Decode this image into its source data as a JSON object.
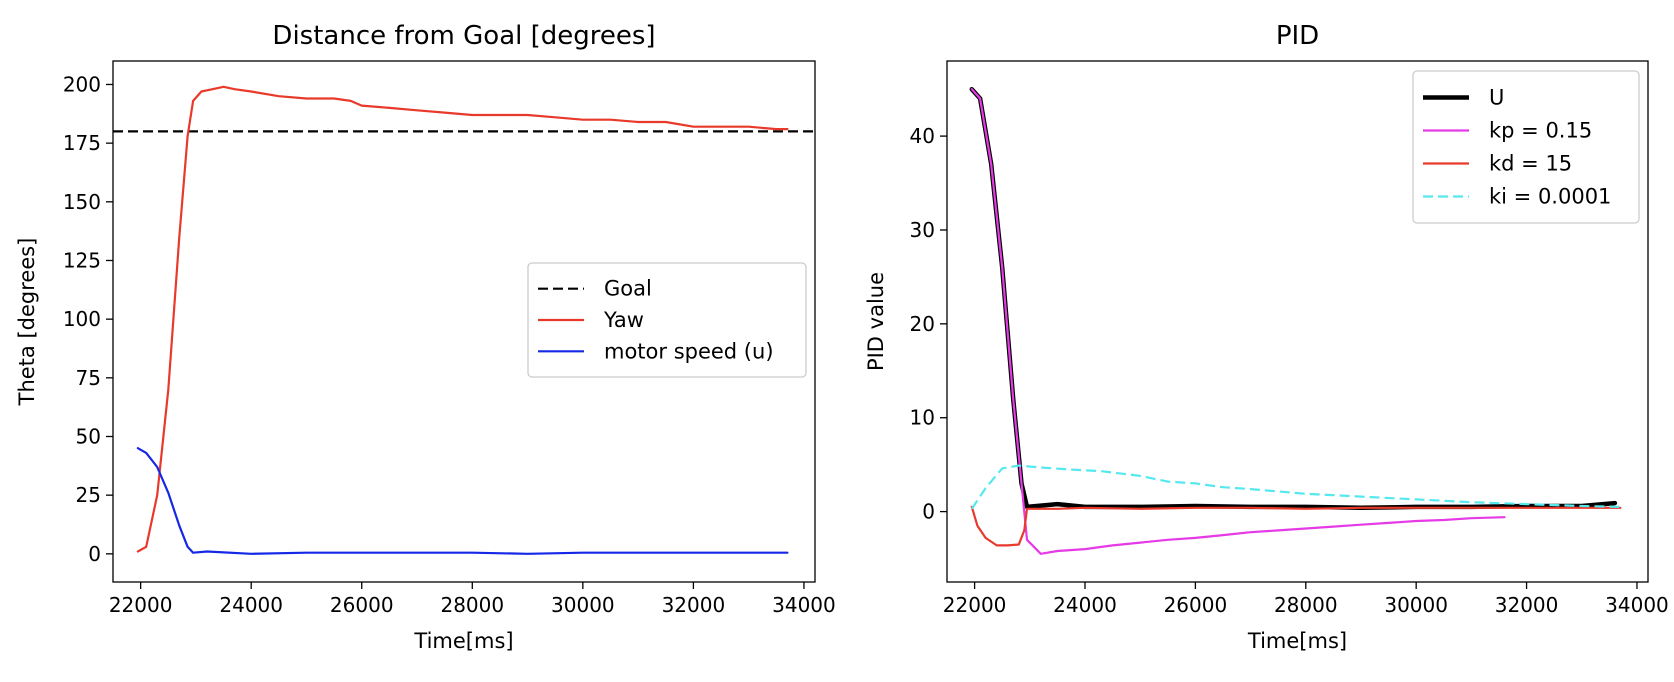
{
  "chart_data": [
    {
      "type": "line",
      "title": "Distance from Goal [degrees]",
      "xlabel": "Time[ms]",
      "ylabel": "Theta [degrees]",
      "xlim": [
        21500,
        34200
      ],
      "ylim": [
        -12,
        210
      ],
      "xticks": [
        22000,
        24000,
        26000,
        28000,
        30000,
        32000,
        34000
      ],
      "yticks": [
        0,
        25,
        50,
        75,
        100,
        125,
        150,
        175,
        200
      ],
      "grid": false,
      "legend_position": "center-right",
      "series": [
        {
          "name": "Goal",
          "color": "#000000",
          "style": "dashed",
          "points": [
            [
              21500,
              180
            ],
            [
              34200,
              180
            ]
          ]
        },
        {
          "name": "Yaw",
          "color": "#e8392b",
          "style": "solid",
          "points": [
            [
              21950,
              1
            ],
            [
              22100,
              3
            ],
            [
              22300,
              25
            ],
            [
              22500,
              70
            ],
            [
              22700,
              135
            ],
            [
              22850,
              178
            ],
            [
              22950,
              193
            ],
            [
              23100,
              197
            ],
            [
              23300,
              198
            ],
            [
              23500,
              199
            ],
            [
              23700,
              198
            ],
            [
              24000,
              197
            ],
            [
              24500,
              195
            ],
            [
              25000,
              194
            ],
            [
              25500,
              194
            ],
            [
              25800,
              193
            ],
            [
              26000,
              191
            ],
            [
              26500,
              190
            ],
            [
              27000,
              189
            ],
            [
              27500,
              188
            ],
            [
              28000,
              187
            ],
            [
              28500,
              187
            ],
            [
              29000,
              187
            ],
            [
              29500,
              186
            ],
            [
              30000,
              185
            ],
            [
              30500,
              185
            ],
            [
              31000,
              184
            ],
            [
              31500,
              184
            ],
            [
              32000,
              182
            ],
            [
              32500,
              182
            ],
            [
              33000,
              182
            ],
            [
              33500,
              181
            ],
            [
              33700,
              181
            ]
          ]
        },
        {
          "name": "motor speed (u)",
          "color": "#1428e6",
          "style": "solid",
          "points": [
            [
              21950,
              45
            ],
            [
              22100,
              43
            ],
            [
              22300,
              37
            ],
            [
              22500,
              26
            ],
            [
              22700,
              12
            ],
            [
              22850,
              3
            ],
            [
              22950,
              0.5
            ],
            [
              23200,
              1
            ],
            [
              24000,
              0
            ],
            [
              25000,
              0.5
            ],
            [
              26000,
              0.5
            ],
            [
              27000,
              0.5
            ],
            [
              28000,
              0.5
            ],
            [
              29000,
              0
            ],
            [
              30000,
              0.5
            ],
            [
              31000,
              0.5
            ],
            [
              32000,
              0.5
            ],
            [
              33000,
              0.5
            ],
            [
              33700,
              0.5
            ]
          ]
        }
      ]
    },
    {
      "type": "line",
      "title": "PID",
      "xlabel": "Time[ms]",
      "ylabel": "PID value",
      "xlim": [
        21500,
        34200
      ],
      "ylim": [
        -7.5,
        48
      ],
      "xticks": [
        22000,
        24000,
        26000,
        28000,
        30000,
        32000,
        34000
      ],
      "yticks": [
        0,
        10,
        20,
        30,
        40
      ],
      "grid": false,
      "legend_position": "top-right",
      "series": [
        {
          "name": "U",
          "color": "#000000",
          "style": "solid-thick",
          "points": [
            [
              21950,
              45
            ],
            [
              22100,
              44
            ],
            [
              22300,
              37
            ],
            [
              22500,
              26
            ],
            [
              22700,
              12
            ],
            [
              22850,
              3
            ],
            [
              22950,
              0.5
            ],
            [
              23500,
              0.8
            ],
            [
              24000,
              0.5
            ],
            [
              25000,
              0.5
            ],
            [
              26000,
              0.6
            ],
            [
              27000,
              0.5
            ],
            [
              28000,
              0.5
            ],
            [
              29000,
              0.4
            ],
            [
              30000,
              0.5
            ],
            [
              31000,
              0.5
            ],
            [
              32000,
              0.6
            ],
            [
              33000,
              0.6
            ],
            [
              33600,
              0.9
            ]
          ]
        },
        {
          "name": "kp = 0.15",
          "color": "#e63ae6",
          "style": "solid",
          "points": [
            [
              21950,
              45
            ],
            [
              22100,
              44
            ],
            [
              22300,
              37
            ],
            [
              22500,
              26
            ],
            [
              22700,
              12
            ],
            [
              22850,
              3
            ],
            [
              22950,
              -3
            ],
            [
              23200,
              -4.5
            ],
            [
              23500,
              -4.2
            ],
            [
              24000,
              -4
            ],
            [
              24500,
              -3.6
            ],
            [
              25000,
              -3.3
            ],
            [
              25500,
              -3
            ],
            [
              26000,
              -2.8
            ],
            [
              26500,
              -2.5
            ],
            [
              27000,
              -2.2
            ],
            [
              27500,
              -2
            ],
            [
              28000,
              -1.8
            ],
            [
              28500,
              -1.6
            ],
            [
              29000,
              -1.4
            ],
            [
              29500,
              -1.2
            ],
            [
              30000,
              -1
            ],
            [
              30500,
              -0.9
            ],
            [
              31000,
              -0.7
            ],
            [
              31600,
              -0.6
            ]
          ]
        },
        {
          "name": "kd = 15",
          "color": "#e8392b",
          "style": "solid",
          "points": [
            [
              21950,
              0.5
            ],
            [
              22050,
              -1.5
            ],
            [
              22200,
              -2.8
            ],
            [
              22400,
              -3.6
            ],
            [
              22600,
              -3.6
            ],
            [
              22800,
              -3.5
            ],
            [
              22900,
              -2
            ],
            [
              22950,
              0.3
            ],
            [
              23500,
              0.3
            ],
            [
              24000,
              0.4
            ],
            [
              25000,
              0.3
            ],
            [
              26000,
              0.4
            ],
            [
              27000,
              0.4
            ],
            [
              28000,
              0.3
            ],
            [
              29000,
              0.4
            ],
            [
              30000,
              0.4
            ],
            [
              31000,
              0.4
            ],
            [
              32000,
              0.4
            ],
            [
              33000,
              0.4
            ],
            [
              33700,
              0.4
            ]
          ]
        },
        {
          "name": "ki = 0.0001",
          "color": "#55e8ee",
          "style": "dashed",
          "points": [
            [
              21950,
              0.3
            ],
            [
              22200,
              2.5
            ],
            [
              22500,
              4.6
            ],
            [
              22800,
              4.9
            ],
            [
              23200,
              4.7
            ],
            [
              23700,
              4.5
            ],
            [
              24300,
              4.3
            ],
            [
              25000,
              3.8
            ],
            [
              25500,
              3.2
            ],
            [
              26000,
              3.0
            ],
            [
              26500,
              2.6
            ],
            [
              27000,
              2.4
            ],
            [
              28000,
              1.9
            ],
            [
              29000,
              1.6
            ],
            [
              30000,
              1.3
            ],
            [
              31000,
              1.0
            ],
            [
              32000,
              0.8
            ],
            [
              33000,
              0.6
            ],
            [
              33700,
              0.5
            ]
          ]
        }
      ]
    }
  ]
}
